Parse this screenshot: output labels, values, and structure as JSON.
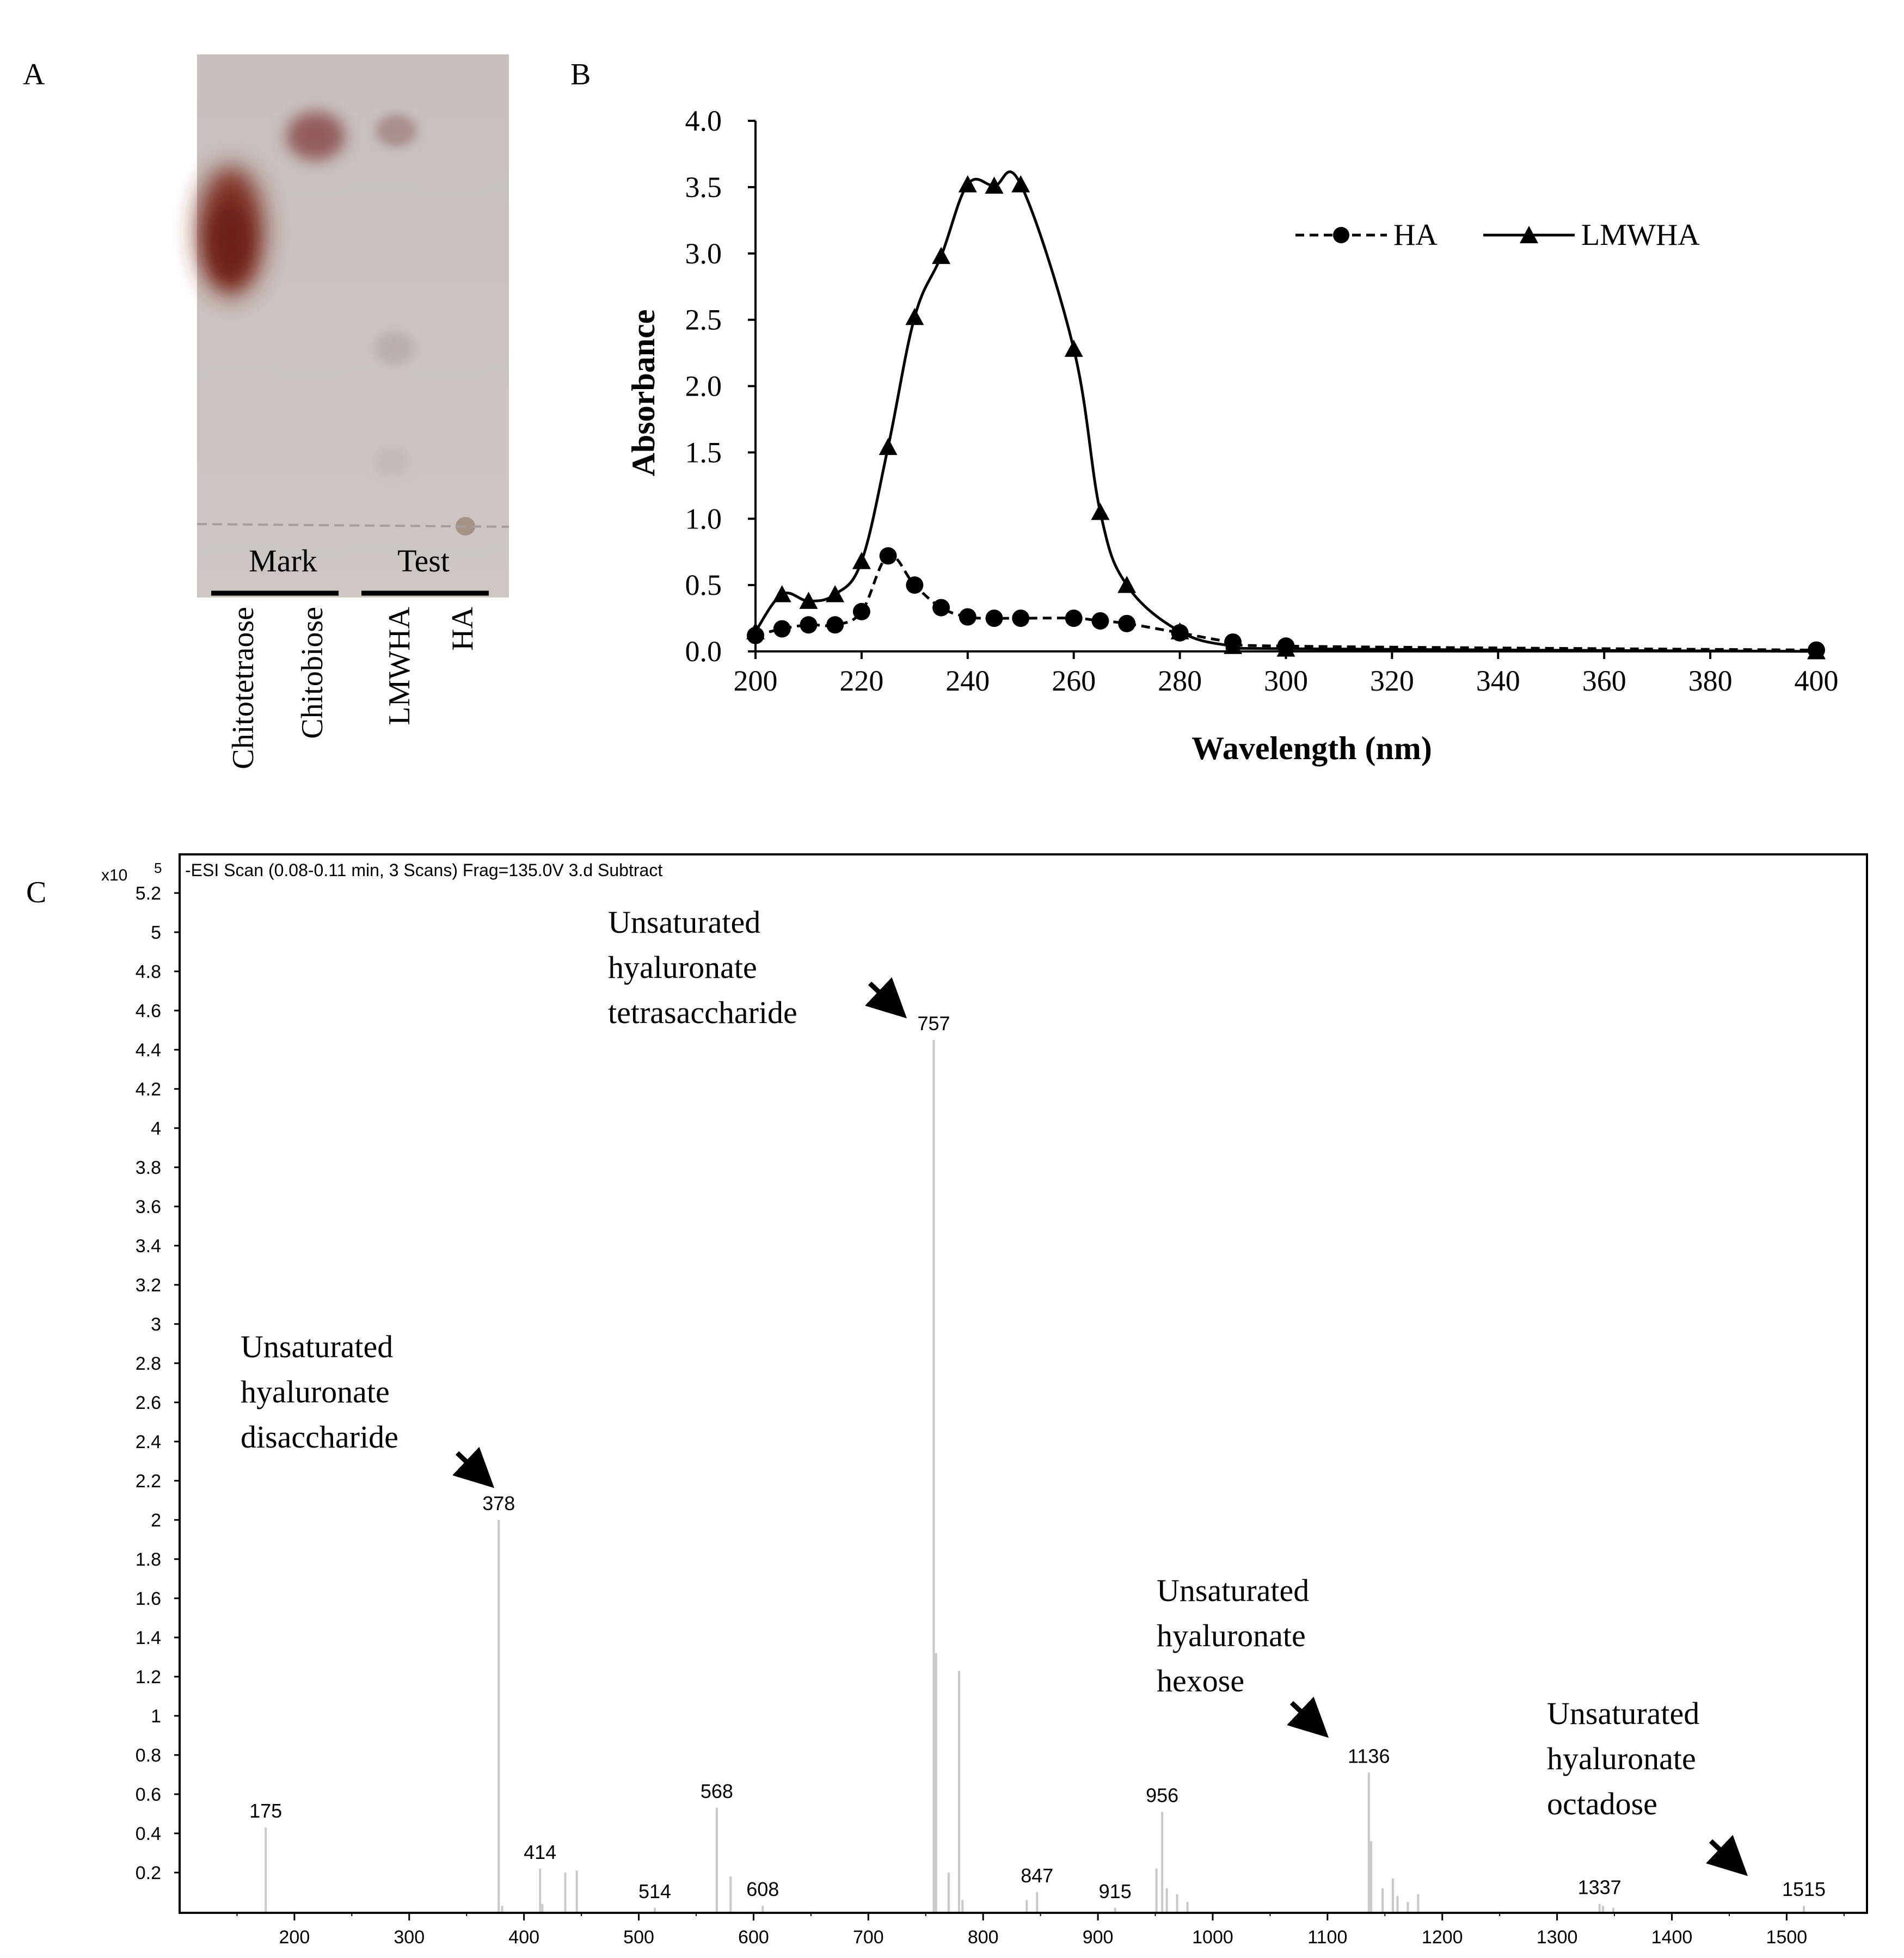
{
  "panels": {
    "a": {
      "letter": "A"
    },
    "b": {
      "letter": "B"
    },
    "c": {
      "letter": "C"
    }
  },
  "tlc": {
    "group_labels": [
      "Mark",
      "Test"
    ],
    "lane_labels": [
      "Chitotetraose",
      "Chitobiose",
      "LMWHA",
      "HA"
    ],
    "colors": {
      "plate": "#c9c2c1",
      "spot_strong": "#7a2a1e",
      "spot_light": "#a8999a"
    }
  },
  "chart_data": [
    {
      "id": "uv",
      "type": "line",
      "xlabel": "Wavelength (nm)",
      "ylabel": "Absorbance",
      "xlim": [
        200,
        400
      ],
      "ylim": [
        0,
        4.0
      ],
      "xticks": [
        "200",
        "220",
        "240",
        "260",
        "280",
        "300",
        "320",
        "340",
        "360",
        "380",
        "400"
      ],
      "yticks": [
        "0.0",
        "0.5",
        "1.0",
        "1.5",
        "2.0",
        "2.5",
        "3.0",
        "3.5",
        "4.0"
      ],
      "legend_position": "top-right",
      "grid": false,
      "series": [
        {
          "name": "HA",
          "style": "dashed",
          "marker": "circle",
          "x": [
            200,
            205,
            210,
            215,
            220,
            225,
            230,
            235,
            240,
            245,
            250,
            260,
            265,
            270,
            280,
            290,
            300,
            400
          ],
          "y": [
            0.12,
            0.17,
            0.2,
            0.2,
            0.3,
            0.72,
            0.5,
            0.33,
            0.26,
            0.25,
            0.25,
            0.25,
            0.23,
            0.21,
            0.14,
            0.07,
            0.04,
            0.01
          ]
        },
        {
          "name": "LMWHA",
          "style": "solid",
          "marker": "triangle",
          "x": [
            200,
            205,
            210,
            215,
            220,
            225,
            230,
            235,
            240,
            245,
            250,
            260,
            265,
            270,
            280,
            290,
            300,
            400
          ],
          "y": [
            0.15,
            0.43,
            0.38,
            0.43,
            0.68,
            1.54,
            2.52,
            2.98,
            3.52,
            3.51,
            3.52,
            2.28,
            1.05,
            0.5,
            0.15,
            0.04,
            0.02,
            0.0
          ]
        }
      ]
    },
    {
      "id": "ms",
      "type": "bar",
      "title": "-ESI Scan (0.08-0.11 min, 3 Scans) Frag=135.0V 3.d  Subtract",
      "y_multiplier": "x10",
      "y_exponent": "5",
      "xlim": [
        100,
        1570
      ],
      "ylim": [
        0,
        5.2
      ],
      "xticks": [
        "200",
        "300",
        "400",
        "500",
        "600",
        "700",
        "800",
        "900",
        "1000",
        "1100",
        "1200",
        "1300",
        "1400",
        "1500"
      ],
      "yticks": [
        "0.2",
        "0.4",
        "0.6",
        "0.8",
        "1",
        "1.2",
        "1.4",
        "1.6",
        "1.8",
        "2",
        "2.2",
        "2.4",
        "2.6",
        "2.8",
        "3",
        "3.2",
        "3.4",
        "3.6",
        "3.8",
        "4",
        "4.2",
        "4.4",
        "4.6",
        "4.8",
        "5",
        "5.2"
      ],
      "peaks": [
        {
          "mz": 175,
          "intensity": 0.43,
          "label": "175"
        },
        {
          "mz": 378,
          "intensity": 2.0,
          "label": "378"
        },
        {
          "mz": 414,
          "intensity": 0.22,
          "label": "414"
        },
        {
          "mz": 514,
          "intensity": 0.02,
          "label": "514"
        },
        {
          "mz": 568,
          "intensity": 0.53,
          "label": "568"
        },
        {
          "mz": 608,
          "intensity": 0.03,
          "label": "608"
        },
        {
          "mz": 757,
          "intensity": 4.45,
          "label": "757"
        },
        {
          "mz": 847,
          "intensity": 0.1,
          "label": "847"
        },
        {
          "mz": 915,
          "intensity": 0.02,
          "label": "915"
        },
        {
          "mz": 956,
          "intensity": 0.51,
          "label": "956"
        },
        {
          "mz": 1136,
          "intensity": 0.71,
          "label": "1136"
        },
        {
          "mz": 1337,
          "intensity": 0.04,
          "label": "1337"
        },
        {
          "mz": 1515,
          "intensity": 0.03,
          "label": "1515"
        }
      ],
      "minor_peaks": [
        {
          "mz": 381,
          "intensity": 0.03
        },
        {
          "mz": 416,
          "intensity": 0.04
        },
        {
          "mz": 436,
          "intensity": 0.2
        },
        {
          "mz": 446,
          "intensity": 0.21
        },
        {
          "mz": 580,
          "intensity": 0.18
        },
        {
          "mz": 759,
          "intensity": 1.32
        },
        {
          "mz": 770,
          "intensity": 0.2
        },
        {
          "mz": 779,
          "intensity": 1.23
        },
        {
          "mz": 782,
          "intensity": 0.06
        },
        {
          "mz": 838,
          "intensity": 0.06
        },
        {
          "mz": 951,
          "intensity": 0.22
        },
        {
          "mz": 960,
          "intensity": 0.12
        },
        {
          "mz": 969,
          "intensity": 0.09
        },
        {
          "mz": 978,
          "intensity": 0.05
        },
        {
          "mz": 1138,
          "intensity": 0.36
        },
        {
          "mz": 1148,
          "intensity": 0.12
        },
        {
          "mz": 1157,
          "intensity": 0.17
        },
        {
          "mz": 1161,
          "intensity": 0.08
        },
        {
          "mz": 1170,
          "intensity": 0.05
        },
        {
          "mz": 1179,
          "intensity": 0.09
        },
        {
          "mz": 1340,
          "intensity": 0.03
        },
        {
          "mz": 1349,
          "intensity": 0.02
        }
      ],
      "annotations": [
        {
          "lines": [
            "Unsaturated",
            "hyaluronate",
            "disaccharide"
          ],
          "target_mz": 378
        },
        {
          "lines": [
            "Unsaturated",
            "hyaluronate",
            "tetrasaccharide"
          ],
          "target_mz": 757
        },
        {
          "lines": [
            "Unsaturated",
            "hyaluronate",
            "hexose"
          ],
          "target_mz": 1136
        },
        {
          "lines": [
            "Unsaturated",
            "hyaluronate",
            "octadose"
          ],
          "target_mz": 1515
        }
      ],
      "colors": {
        "peak": "#c8c8c8",
        "axis": "#000000"
      }
    }
  ]
}
